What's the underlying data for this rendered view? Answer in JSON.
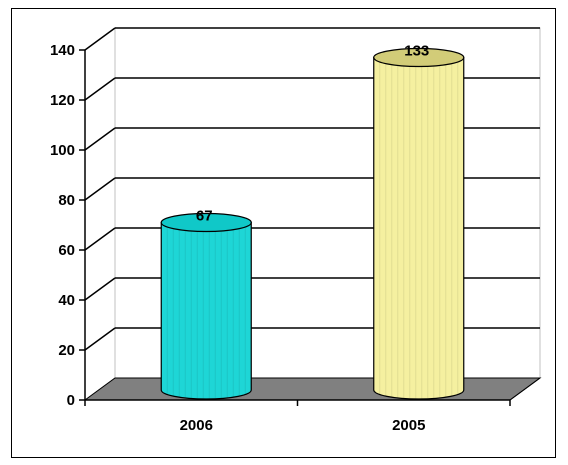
{
  "chart_data": {
    "type": "bar",
    "bar_shape": "3d-cylinder",
    "categories": [
      "2006",
      "2005"
    ],
    "values": [
      67,
      133
    ],
    "data_labels": [
      "67",
      "133"
    ],
    "ylim": [
      0,
      140
    ],
    "yticks": [
      0,
      20,
      40,
      60,
      80,
      100,
      120,
      140
    ],
    "grid": true,
    "legend": "none",
    "colors": {
      "bar_fills": [
        "#1ed6d6",
        "#f5f0a0"
      ],
      "bar_tops": [
        "#10c8c8",
        "#d2cc78"
      ],
      "floor": "#808080",
      "gridlines": "#000000",
      "frame": "#000000"
    }
  }
}
